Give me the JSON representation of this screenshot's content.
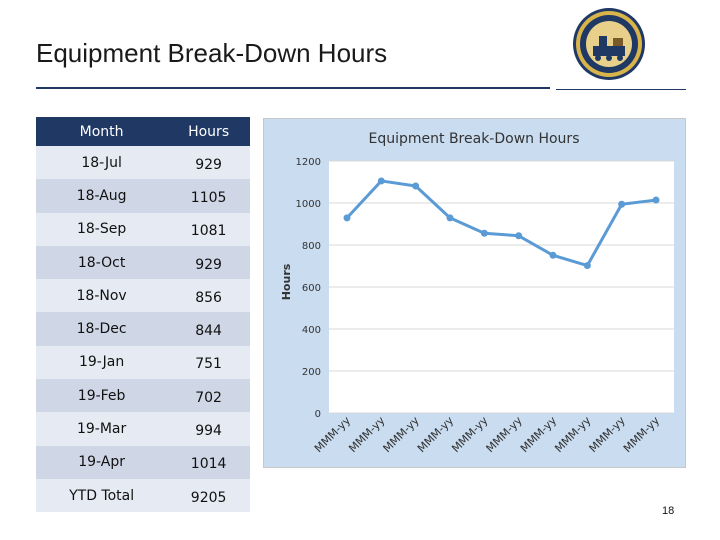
{
  "slide": {
    "title": "Equipment Break-Down Hours",
    "page_number": "18"
  },
  "table": {
    "headers": [
      "Month",
      "Hours"
    ],
    "rows": [
      {
        "month": "18-Jul",
        "hours": "929"
      },
      {
        "month": "18-Aug",
        "hours": "1105"
      },
      {
        "month": "18-Sep",
        "hours": "1081"
      },
      {
        "month": "18-Oct",
        "hours": "929"
      },
      {
        "month": "18-Nov",
        "hours": "856"
      },
      {
        "month": "18-Dec",
        "hours": "844"
      },
      {
        "month": "19-Jan",
        "hours": "751"
      },
      {
        "month": "19-Feb",
        "hours": "702"
      },
      {
        "month": "19-Mar",
        "hours": "994"
      },
      {
        "month": "19-Apr",
        "hours": "1014"
      },
      {
        "month": "YTD Total",
        "hours": "9205"
      }
    ]
  },
  "chart_data": {
    "type": "line",
    "title": "Equipment Break-Down Hours",
    "xlabel": "",
    "ylabel": "Hours",
    "categories": [
      "MMM-yy",
      "MMM-yy",
      "MMM-yy",
      "MMM-yy",
      "MMM-yy",
      "MMM-yy",
      "MMM-yy",
      "MMM-yy",
      "MMM-yy",
      "MMM-yy"
    ],
    "values": [
      929,
      1105,
      1081,
      929,
      856,
      844,
      751,
      702,
      994,
      1014
    ],
    "ylim": [
      0,
      1200
    ],
    "yticks": [
      0,
      200,
      400,
      600,
      800,
      1000,
      1200
    ],
    "grid": true,
    "legend": "none",
    "colors": {
      "line": "#5b9bd5",
      "plot_background": "#ffffff",
      "chart_background": "#c9dcf0"
    }
  }
}
